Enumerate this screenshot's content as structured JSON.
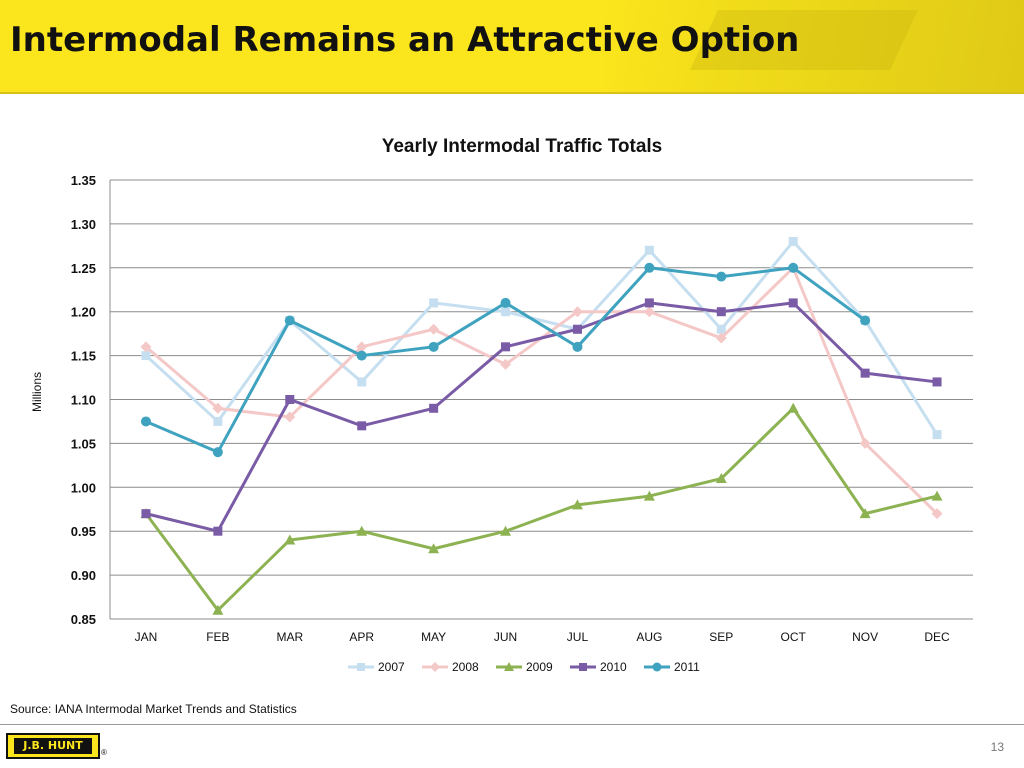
{
  "slide": {
    "title": "Intermodal Remains an Attractive Option",
    "source": "Source:  IANA Intermodal Market Trends and Statistics",
    "page_number": "13",
    "logo_text": "J.B. HUNT",
    "brand_color": "#fbe51c"
  },
  "chart_data": {
    "type": "line",
    "title": "Yearly Intermodal Traffic Totals",
    "xlabel": "",
    "ylabel": "Millions",
    "categories": [
      "JAN",
      "FEB",
      "MAR",
      "APR",
      "MAY",
      "JUN",
      "JUL",
      "AUG",
      "SEP",
      "OCT",
      "NOV",
      "DEC"
    ],
    "ylim": [
      0.85,
      1.35
    ],
    "yticks": [
      "0.85",
      "0.90",
      "0.95",
      "1.00",
      "1.05",
      "1.10",
      "1.15",
      "1.20",
      "1.25",
      "1.30",
      "1.35"
    ],
    "grid": true,
    "legend": "bottom",
    "series": [
      {
        "name": "2007",
        "color": "#c5dff0",
        "marker": "square",
        "values": [
          1.15,
          1.075,
          1.19,
          1.12,
          1.21,
          1.2,
          1.18,
          1.27,
          1.18,
          1.28,
          1.19,
          1.06
        ]
      },
      {
        "name": "2008",
        "color": "#f5c8c8",
        "marker": "diamond",
        "values": [
          1.16,
          1.09,
          1.08,
          1.16,
          1.18,
          1.14,
          1.2,
          1.2,
          1.17,
          1.25,
          1.05,
          0.97
        ]
      },
      {
        "name": "2009",
        "color": "#8db252",
        "marker": "triangle",
        "values": [
          0.97,
          0.86,
          0.94,
          0.95,
          0.93,
          0.95,
          0.98,
          0.99,
          1.01,
          1.09,
          0.97,
          0.99
        ]
      },
      {
        "name": "2010",
        "color": "#7a5ba6",
        "marker": "square",
        "values": [
          0.97,
          0.95,
          1.1,
          1.07,
          1.09,
          1.16,
          1.18,
          1.21,
          1.2,
          1.21,
          1.13,
          1.12
        ]
      },
      {
        "name": "2011",
        "color": "#3fa3c0",
        "marker": "circle",
        "values": [
          1.075,
          1.04,
          1.19,
          1.15,
          1.16,
          1.21,
          1.16,
          1.25,
          1.24,
          1.25,
          1.19,
          null
        ]
      }
    ]
  }
}
